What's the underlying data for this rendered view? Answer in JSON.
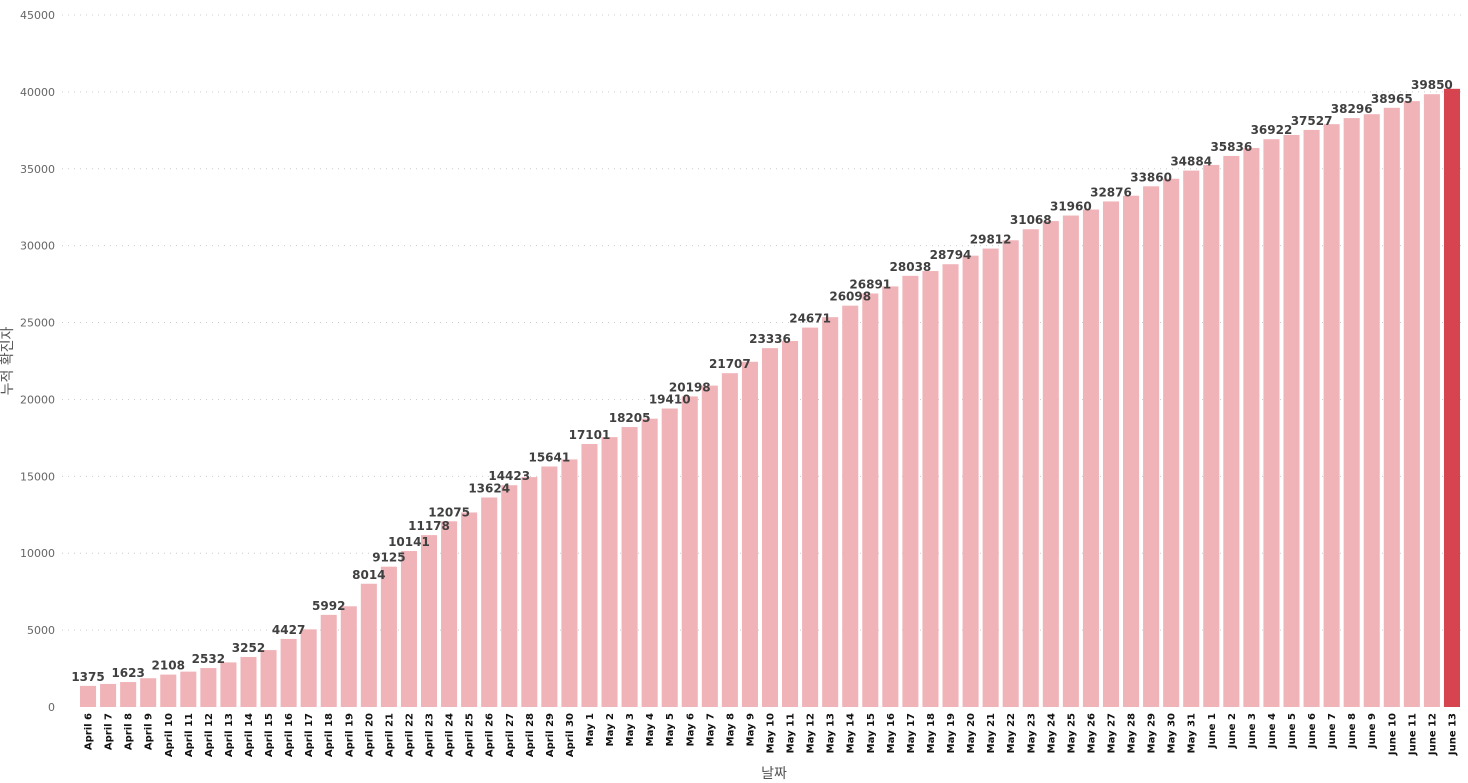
{
  "chart_data": {
    "type": "bar",
    "title": "",
    "xlabel": "날짜",
    "ylabel": "누적 확진자",
    "ylim": [
      0,
      45000
    ],
    "yticks": [
      0,
      5000,
      10000,
      15000,
      20000,
      25000,
      30000,
      35000,
      40000,
      45000
    ],
    "grid": true,
    "legend": "none",
    "colors": {
      "bar": "#f0b3b8",
      "highlight": "#d6454f"
    },
    "highlight_index": 68,
    "categories": [
      "April 6",
      "April 7",
      "April 8",
      "April 9",
      "April 10",
      "April 11",
      "April 12",
      "April 13",
      "April 14",
      "April 15",
      "April 16",
      "April 17",
      "April 18",
      "April 19",
      "April 20",
      "April 21",
      "April 22",
      "April 23",
      "April 24",
      "April 25",
      "April 26",
      "April 27",
      "April 28",
      "April 29",
      "April 30",
      "May 1",
      "May 2",
      "May 3",
      "May 4",
      "May 5",
      "May 6",
      "May 7",
      "May 8",
      "May 9",
      "May 10",
      "May 11",
      "May 12",
      "May 13",
      "May 14",
      "May 15",
      "May 16",
      "May 17",
      "May 18",
      "May 19",
      "May 20",
      "May 21",
      "May 22",
      "May 23",
      "May 24",
      "May 25",
      "May 26",
      "May 27",
      "May 28",
      "May 29",
      "May 30",
      "May 31",
      "June 1",
      "June 2",
      "June 3",
      "June 4",
      "June 5",
      "June 6",
      "June 7",
      "June 8",
      "June 9",
      "June 10",
      "June 11",
      "June 12",
      "June 13"
    ],
    "values": [
      1375,
      1500,
      1623,
      1870,
      2108,
      2300,
      2532,
      2900,
      3252,
      3700,
      4427,
      5050,
      5992,
      6550,
      8014,
      9125,
      10141,
      11178,
      12075,
      12650,
      13624,
      14423,
      14950,
      15641,
      16100,
      17101,
      17550,
      18205,
      18750,
      19410,
      20198,
      20900,
      21707,
      22450,
      23336,
      23800,
      24671,
      25350,
      26098,
      26891,
      27350,
      28038,
      28350,
      28794,
      29350,
      29812,
      30350,
      31068,
      31600,
      31960,
      32350,
      32876,
      33250,
      33860,
      34350,
      34884,
      35250,
      35836,
      36350,
      36922,
      37200,
      37527,
      37900,
      38296,
      38550,
      38965,
      39400,
      39850,
      40200
    ],
    "data_labels": [
      "1375",
      "",
      "1623",
      "",
      "2108",
      "",
      "2532",
      "",
      "3252",
      "",
      "4427",
      "",
      "5992",
      "",
      "8014",
      "9125",
      "10141",
      "11178",
      "12075",
      "",
      "13624",
      "14423",
      "",
      "15641",
      "",
      "17101",
      "",
      "18205",
      "",
      "19410",
      "20198",
      "",
      "21707",
      "",
      "23336",
      "",
      "24671",
      "",
      "26098",
      "26891",
      "",
      "28038",
      "",
      "28794",
      "",
      "29812",
      "",
      "31068",
      "",
      "31960",
      "",
      "32876",
      "",
      "33860",
      "",
      "34884",
      "",
      "35836",
      "",
      "36922",
      "",
      "37527",
      "",
      "38296",
      "",
      "38965",
      "",
      "39850",
      ""
    ]
  }
}
